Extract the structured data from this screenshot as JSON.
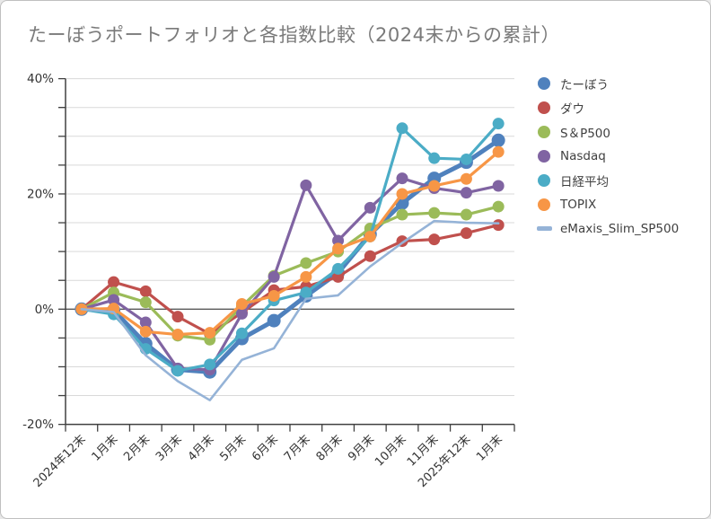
{
  "chart_data": {
    "type": "line",
    "title": "たーぼうポートフォリオと各指数比較（2024末からの累計）",
    "categories": [
      "2024年12末",
      "1月末",
      "2月末",
      "3月末",
      "4月末",
      "5月末",
      "6月末",
      "7月末",
      "8月末",
      "9月末",
      "10月末",
      "11月末",
      "2025年12末",
      "1月末"
    ],
    "series": [
      {
        "name": "たーぼう",
        "color": "#4F81BD",
        "marker": true,
        "thick": true,
        "values": [
          0,
          -0.2,
          -6.0,
          -10.5,
          -10.9,
          -5.1,
          -2.0,
          2.3,
          6.3,
          13.0,
          18.4,
          22.7,
          25.5,
          29.3
        ]
      },
      {
        "name": "ダウ",
        "color": "#C0504D",
        "marker": true,
        "thick": false,
        "values": [
          0,
          4.7,
          3.1,
          -1.3,
          -4.3,
          -0.6,
          3.3,
          3.9,
          5.6,
          9.2,
          11.8,
          12.1,
          13.2,
          14.6
        ]
      },
      {
        "name": "S＆P500",
        "color": "#9BBB59",
        "marker": true,
        "thick": false,
        "values": [
          0,
          2.9,
          1.2,
          -4.6,
          -5.3,
          0.5,
          5.8,
          8.0,
          10.0,
          14.0,
          16.4,
          16.7,
          16.4,
          17.8
        ]
      },
      {
        "name": "Nasdaq",
        "color": "#8064A2",
        "marker": true,
        "thick": false,
        "values": [
          0,
          1.6,
          -2.3,
          -10.3,
          -10.5,
          -0.8,
          5.6,
          21.5,
          11.9,
          17.6,
          22.7,
          21.0,
          20.2,
          21.4
        ]
      },
      {
        "name": "日経平均",
        "color": "#4BACC6",
        "marker": true,
        "thick": false,
        "values": [
          0,
          -0.9,
          -6.9,
          -10.7,
          -9.6,
          -4.2,
          1.5,
          2.9,
          7.0,
          12.6,
          31.4,
          26.2,
          26.0,
          32.2
        ]
      },
      {
        "name": "TOPIX",
        "color": "#F79646",
        "marker": true,
        "thick": false,
        "values": [
          0,
          0.1,
          -3.9,
          -4.4,
          -4.1,
          0.9,
          2.3,
          5.6,
          10.5,
          12.6,
          20.0,
          21.4,
          22.6,
          27.3
        ]
      },
      {
        "name": "eMaxis_Slim_SP500",
        "color": "#95B3D7",
        "marker": false,
        "thick": false,
        "values": [
          0,
          -0.5,
          -8.0,
          -12.5,
          -15.8,
          -8.8,
          -6.8,
          1.8,
          2.4,
          7.4,
          11.5,
          15.3,
          15.0,
          14.9
        ]
      }
    ],
    "ylim": [
      -20,
      40
    ],
    "ytick_labels": [
      "-20%",
      "0%",
      "20%",
      "40%"
    ],
    "ytick_major_step": 20,
    "ytick_minor_step": 5,
    "grid": true,
    "legend_position": "right",
    "colors": {
      "grid": "#d9d9d9",
      "zero_line": "#595959",
      "axis": "#404040",
      "tick_label": "#333333",
      "title": "#7a7a7a"
    }
  }
}
